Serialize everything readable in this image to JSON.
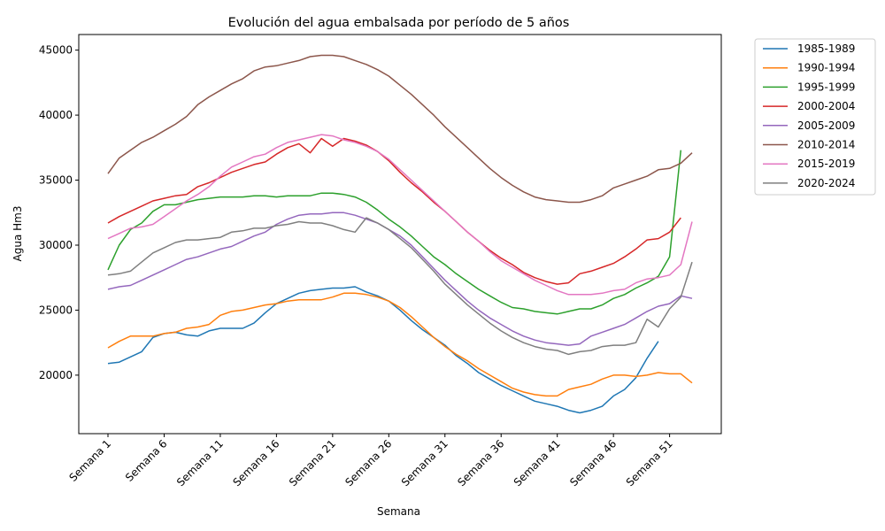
{
  "chart_data": {
    "type": "line",
    "title": "Evolución del agua embalsada por período de 5 años",
    "xlabel": "Semana",
    "ylabel": "Agua Hm3",
    "xlim": [
      1,
      53
    ],
    "ylim": [
      15500,
      46200
    ],
    "x_tick_labels": [
      "Semana 1",
      "Semana 6",
      "Semana 11",
      "Semana 16",
      "Semana 21",
      "Semana 26",
      "Semana 31",
      "Semana 36",
      "Semana 41",
      "Semana 46",
      "Semana 51"
    ],
    "x_tick_weeks": [
      1,
      6,
      11,
      16,
      21,
      26,
      31,
      36,
      41,
      46,
      51
    ],
    "y_ticks": [
      20000,
      25000,
      30000,
      35000,
      40000,
      45000
    ],
    "y_tick_labels": [
      "20000",
      "25000",
      "30000",
      "35000",
      "40000",
      "45000"
    ],
    "grid": false,
    "legend_position": "outside-top-right",
    "series": [
      {
        "name": "1985-1989",
        "color": "#1f77b4",
        "values": [
          20900,
          21000,
          21400,
          21800,
          22900,
          23200,
          23300,
          23100,
          23000,
          23400,
          23600,
          23600,
          23600,
          24000,
          24800,
          25500,
          25900,
          26300,
          26500,
          26600,
          26700,
          26700,
          26800,
          26400,
          26100,
          25700,
          25000,
          24200,
          23500,
          22900,
          22300,
          21500,
          20900,
          20200,
          19700,
          19200,
          18800,
          18400,
          18000,
          17800,
          17600,
          17300,
          17100,
          17300,
          17600,
          18400,
          18900,
          19800,
          21300,
          22600
        ]
      },
      {
        "name": "1990-1994",
        "color": "#ff7f0e",
        "values": [
          22100,
          22600,
          23000,
          23000,
          23000,
          23200,
          23300,
          23600,
          23700,
          23900,
          24600,
          24900,
          25000,
          25200,
          25400,
          25500,
          25700,
          25800,
          25800,
          25800,
          26000,
          26300,
          26300,
          26200,
          26000,
          25700,
          25200,
          24500,
          23700,
          22900,
          22200,
          21600,
          21100,
          20500,
          20000,
          19500,
          19000,
          18700,
          18500,
          18400,
          18400,
          18900,
          19100,
          19300,
          19700,
          20000,
          20000,
          19900,
          20000,
          20200,
          20100,
          20100,
          19400
        ]
      },
      {
        "name": "1995-1999",
        "color": "#2ca02c",
        "values": [
          28100,
          30000,
          31200,
          31700,
          32600,
          33100,
          33100,
          33300,
          33500,
          33600,
          33700,
          33700,
          33700,
          33800,
          33800,
          33700,
          33800,
          33800,
          33800,
          34000,
          34000,
          33900,
          33700,
          33300,
          32700,
          32000,
          31400,
          30700,
          29900,
          29100,
          28500,
          27800,
          27200,
          26600,
          26100,
          25600,
          25200,
          25100,
          24900,
          24800,
          24700,
          24900,
          25100,
          25100,
          25400,
          25900,
          26200,
          26700,
          27100,
          27600,
          29100,
          37300
        ]
      },
      {
        "name": "2000-2004",
        "color": "#d62728",
        "values": [
          31700,
          32200,
          32600,
          33000,
          33400,
          33600,
          33800,
          33900,
          34500,
          34800,
          35200,
          35600,
          35900,
          36200,
          36400,
          37000,
          37500,
          37800,
          37100,
          38200,
          37600,
          38200,
          38000,
          37700,
          37200,
          36500,
          35600,
          34800,
          34100,
          33300,
          32600,
          31800,
          31000,
          30300,
          29600,
          29000,
          28500,
          27900,
          27500,
          27200,
          27000,
          27100,
          27800,
          28000,
          28300,
          28600,
          29100,
          29700,
          30400,
          30500,
          31000,
          32100
        ]
      },
      {
        "name": "2005-2009",
        "color": "#9467bd",
        "values": [
          26600,
          26800,
          26900,
          27300,
          27700,
          28100,
          28500,
          28900,
          29100,
          29400,
          29700,
          29900,
          30300,
          30700,
          31000,
          31600,
          32000,
          32300,
          32400,
          32400,
          32500,
          32500,
          32300,
          32000,
          31700,
          31200,
          30700,
          30000,
          29100,
          28200,
          27300,
          26500,
          25700,
          25000,
          24400,
          23900,
          23400,
          23000,
          22700,
          22500,
          22400,
          22300,
          22400,
          23000,
          23300,
          23600,
          23900,
          24400,
          24900,
          25300,
          25500,
          26100,
          25900
        ]
      },
      {
        "name": "2010-2014",
        "color": "#8c564b",
        "values": [
          35500,
          36700,
          37300,
          37900,
          38300,
          38800,
          39300,
          39900,
          40800,
          41400,
          41900,
          42400,
          42800,
          43400,
          43700,
          43800,
          44000,
          44200,
          44500,
          44600,
          44600,
          44500,
          44200,
          43900,
          43500,
          43000,
          42300,
          41600,
          40800,
          40000,
          39100,
          38300,
          37500,
          36700,
          35900,
          35200,
          34600,
          34100,
          33700,
          33500,
          33400,
          33300,
          33300,
          33500,
          33800,
          34400,
          34700,
          35000,
          35300,
          35800,
          35900,
          36300,
          37100
        ]
      },
      {
        "name": "2015-2019",
        "color": "#e377c2",
        "values": [
          30500,
          30900,
          31300,
          31400,
          31600,
          32200,
          32800,
          33400,
          33900,
          34500,
          35300,
          36000,
          36400,
          36800,
          37000,
          37500,
          37900,
          38100,
          38300,
          38500,
          38400,
          38100,
          37900,
          37600,
          37200,
          36600,
          35800,
          35000,
          34200,
          33400,
          32600,
          31800,
          31000,
          30300,
          29500,
          28800,
          28300,
          27800,
          27300,
          26900,
          26500,
          26200,
          26200,
          26200,
          26300,
          26500,
          26600,
          27100,
          27400,
          27500,
          27700,
          28500,
          31800
        ]
      },
      {
        "name": "2020-2024",
        "color": "#7f7f7f",
        "values": [
          27700,
          27800,
          28000,
          28700,
          29400,
          29800,
          30200,
          30400,
          30400,
          30500,
          30600,
          31000,
          31100,
          31300,
          31300,
          31500,
          31600,
          31800,
          31700,
          31700,
          31500,
          31200,
          31000,
          32100,
          31700,
          31200,
          30500,
          29800,
          28900,
          28000,
          27000,
          26200,
          25400,
          24700,
          24000,
          23400,
          22900,
          22500,
          22200,
          22000,
          21900,
          21600,
          21800,
          21900,
          22200,
          22300,
          22300,
          22500,
          24300,
          23700,
          25100,
          26000,
          28700
        ]
      }
    ]
  }
}
